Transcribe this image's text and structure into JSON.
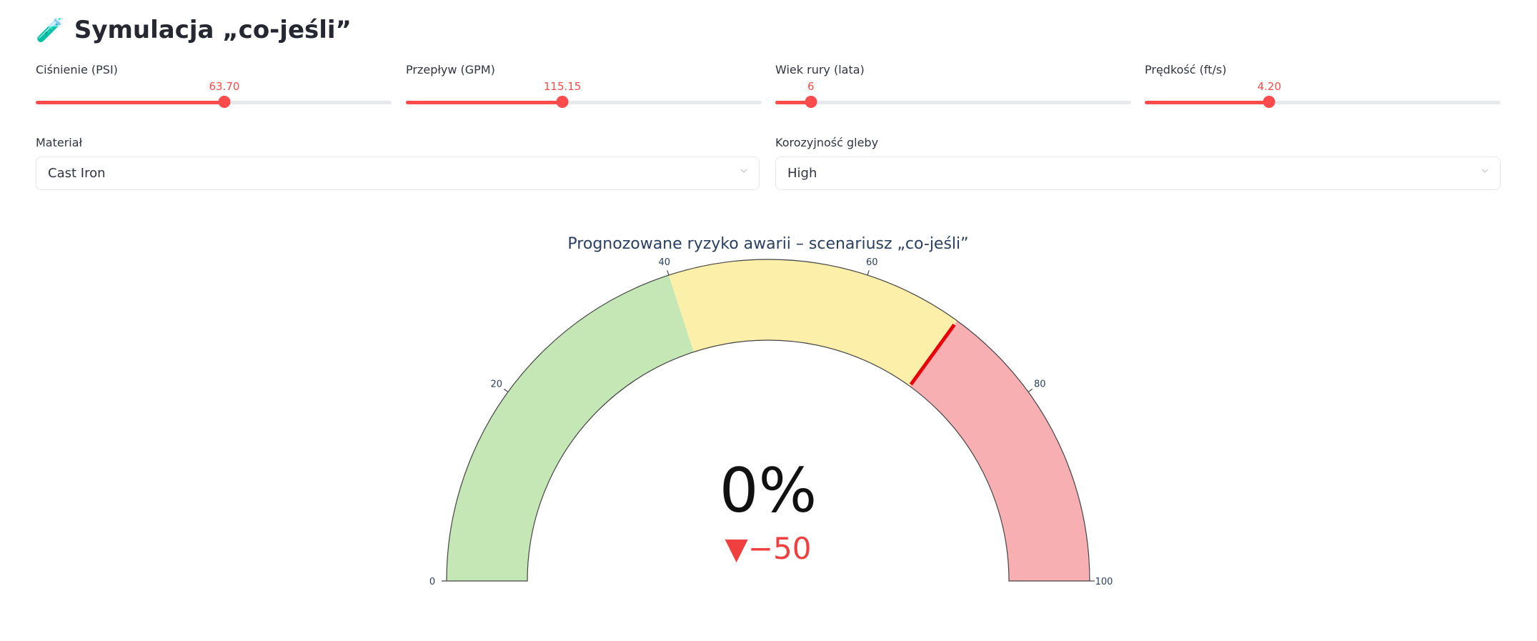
{
  "header": {
    "icon": "test-tube-icon",
    "emoji": "🧪",
    "title": "Symulacja „co-jeśli”"
  },
  "sliders": [
    {
      "label": "Ciśnienie (PSI)",
      "value": "63.70",
      "fraction": 0.53
    },
    {
      "label": "Przepływ (GPM)",
      "value": "115.15",
      "fraction": 0.44
    },
    {
      "label": "Wiek rury (lata)",
      "value": "6",
      "fraction": 0.1
    },
    {
      "label": "Prędkość (ft/s)",
      "value": "4.20",
      "fraction": 0.35
    }
  ],
  "selects": [
    {
      "label": "Materiał",
      "value": "Cast Iron"
    },
    {
      "label": "Korozyjność gleby",
      "value": "High"
    }
  ],
  "chart_data": {
    "type": "gauge",
    "title": "Prognozowane ryzyko awarii – scenariusz „co-jeśli”",
    "value": 0,
    "value_text": "0%",
    "delta": -50,
    "delta_text": "▼−50",
    "range": [
      0,
      100
    ],
    "tick_labels": [
      "0",
      "20",
      "40",
      "60",
      "80",
      "100"
    ],
    "tick_values": [
      0,
      20,
      40,
      60,
      80,
      100
    ],
    "steps": [
      {
        "range": [
          0,
          40
        ],
        "color": "#c5e7b6"
      },
      {
        "range": [
          40,
          70
        ],
        "color": "#fcefaa"
      },
      {
        "range": [
          70,
          100
        ],
        "color": "#f7afb2"
      }
    ],
    "threshold": {
      "value": 70,
      "color": "#e8000b"
    },
    "delta_color": "#ef3f3f"
  }
}
